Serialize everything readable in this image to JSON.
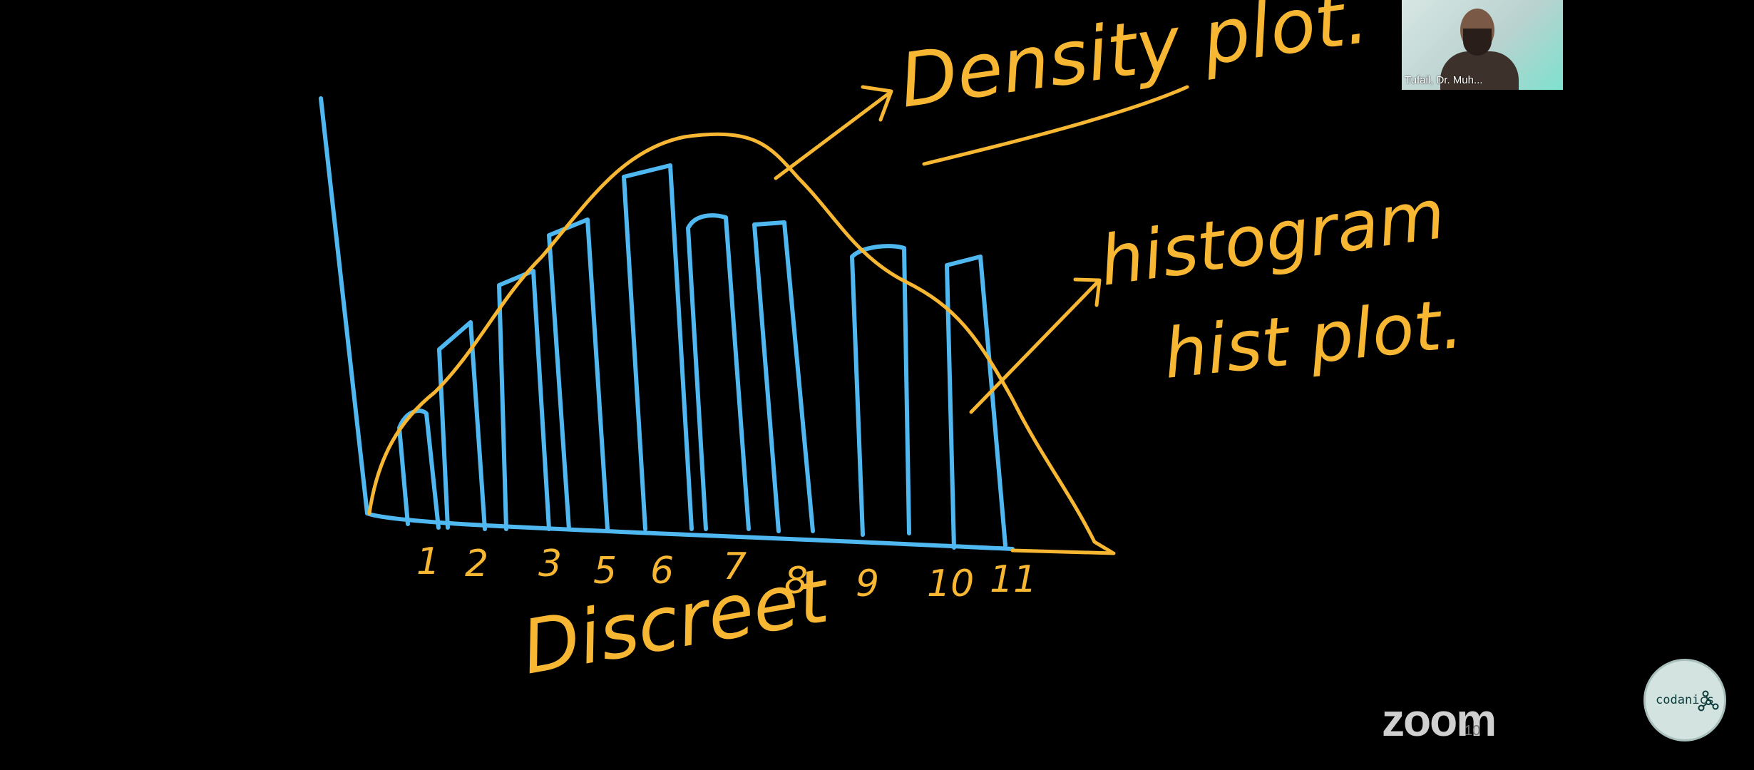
{
  "board": {
    "title": "Density plot.",
    "hist_label_1": "histogram",
    "hist_label_2": "hist plot.",
    "x_label": "Discreet",
    "ticks": [
      "1",
      "2",
      "3",
      "5",
      "6",
      "7",
      "8",
      "9",
      "10",
      "11"
    ]
  },
  "participant": {
    "name": "Tufail, Dr. Muh..."
  },
  "zoom": {
    "logo": "zoom",
    "slide_number": "10"
  },
  "brand": {
    "name": "codanics"
  },
  "colors": {
    "ink_yellow": "#f7b733",
    "ink_blue": "#4fb8f0",
    "background": "#000000"
  }
}
